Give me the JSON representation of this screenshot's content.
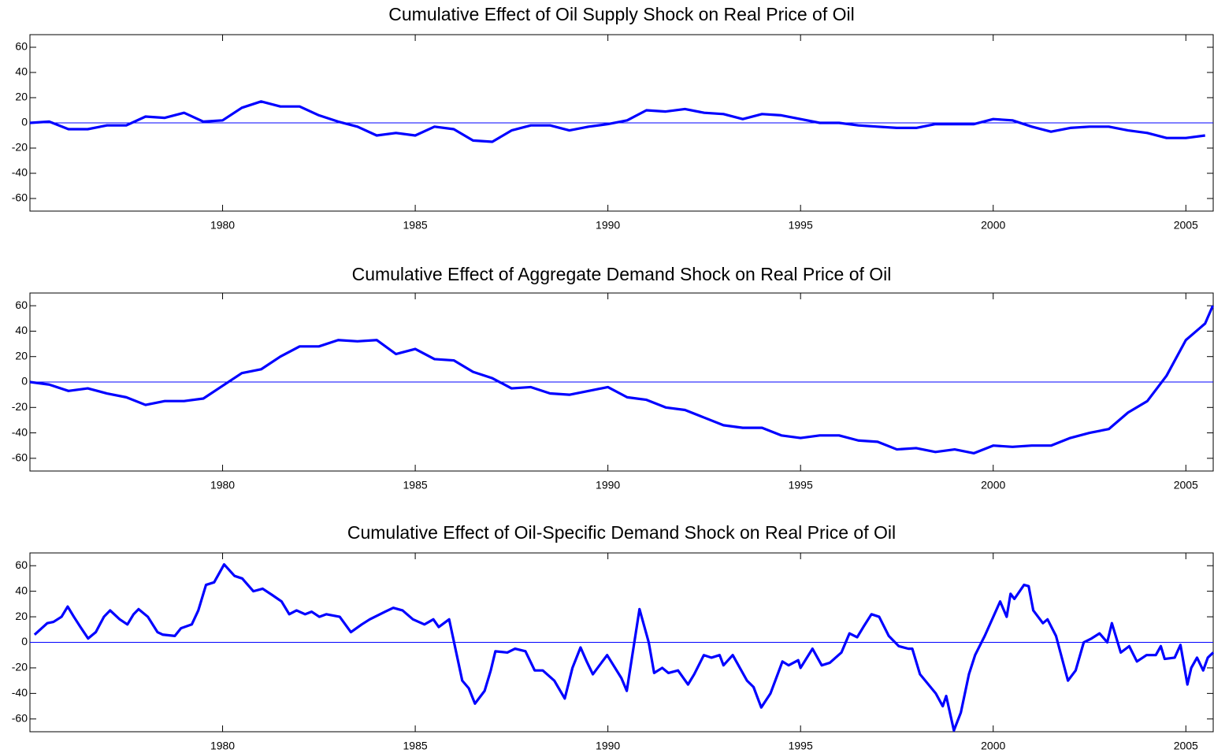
{
  "chart_data": [
    {
      "type": "line",
      "title": "Cumulative Effect of Oil Supply Shock on Real Price of Oil",
      "color": "#0000ff",
      "xlim": [
        1975,
        2005.71
      ],
      "ylim": [
        -70,
        70
      ],
      "xticks": [
        1980,
        1985,
        1990,
        1995,
        2000,
        2005
      ],
      "yticks": [
        -60,
        -40,
        -20,
        0,
        20,
        40,
        60
      ],
      "x": [
        1975,
        1975.5,
        1976,
        1976.5,
        1977,
        1977.5,
        1978,
        1978.5,
        1979,
        1979.5,
        1980,
        1980.5,
        1981,
        1981.5,
        1982,
        1982.5,
        1983,
        1983.5,
        1984,
        1984.5,
        1985,
        1985.5,
        1986,
        1986.5,
        1987,
        1987.5,
        1988,
        1988.5,
        1989,
        1989.5,
        1990,
        1990.5,
        1991,
        1991.5,
        1992,
        1992.5,
        1993,
        1993.5,
        1994,
        1994.5,
        1995,
        1995.5,
        1996,
        1996.5,
        1997,
        1997.5,
        1998,
        1998.5,
        1999,
        1999.5,
        2000,
        2000.5,
        2001,
        2001.5,
        2002,
        2002.5,
        2003,
        2003.5,
        2004,
        2004.5,
        2005,
        2005.5
      ],
      "values": [
        0,
        1,
        -5,
        -5,
        -2,
        -2,
        5,
        4,
        8,
        1,
        2,
        12,
        17,
        13,
        13,
        6,
        1,
        -3,
        -10,
        -8,
        -10,
        -3,
        -5,
        -14,
        -15,
        -6,
        -2,
        -2,
        -6,
        -3,
        -1,
        2,
        10,
        9,
        11,
        8,
        7,
        3,
        7,
        6,
        3,
        0,
        0,
        -2,
        -3,
        -4,
        -4,
        -1,
        -1,
        -1,
        3,
        2,
        -3,
        -7,
        -4,
        -3,
        -3,
        -6,
        -8,
        -12,
        -12,
        -10
      ]
    },
    {
      "type": "line",
      "title": "Cumulative Effect of Aggregate Demand Shock on Real Price of Oil",
      "color": "#0000ff",
      "xlim": [
        1975,
        2005.71
      ],
      "ylim": [
        -70,
        70
      ],
      "xticks": [
        1980,
        1985,
        1990,
        1995,
        2000,
        2005
      ],
      "yticks": [
        -60,
        -40,
        -20,
        0,
        20,
        40,
        60
      ],
      "x": [
        1975,
        1975.5,
        1976,
        1976.5,
        1977,
        1977.5,
        1978,
        1978.5,
        1979,
        1979.5,
        1980,
        1980.5,
        1981,
        1981.5,
        1982,
        1982.5,
        1983,
        1983.5,
        1984,
        1984.5,
        1985,
        1985.5,
        1986,
        1986.5,
        1987,
        1987.5,
        1988,
        1988.5,
        1989,
        1989.5,
        1990,
        1990.5,
        1991,
        1991.5,
        1992,
        1992.5,
        1993,
        1993.5,
        1994,
        1994.5,
        1995,
        1995.5,
        1996,
        1996.5,
        1997,
        1997.5,
        1998,
        1998.5,
        1999,
        1999.5,
        2000,
        2000.5,
        2001,
        2001.5,
        2002,
        2002.5,
        2003,
        2003.5,
        2004,
        2004.5,
        2005,
        2005.5,
        2005.7
      ],
      "values": [
        0,
        -2,
        -7,
        -5,
        -9,
        -12,
        -18,
        -15,
        -15,
        -13,
        -3,
        7,
        10,
        20,
        28,
        28,
        33,
        32,
        33,
        22,
        26,
        18,
        17,
        8,
        3,
        -5,
        -4,
        -9,
        -10,
        -7,
        -4,
        -12,
        -14,
        -20,
        -22,
        -28,
        -34,
        -36,
        -36,
        -42,
        -44,
        -42,
        -42,
        -46,
        -47,
        -53,
        -52,
        -55,
        -53,
        -56,
        -50,
        -51,
        -50,
        -50,
        -44,
        -40,
        -37,
        -24,
        -15,
        5,
        33,
        46,
        60
      ]
    },
    {
      "type": "line",
      "title": "Cumulative Effect of Oil-Specific Demand Shock on Real Price of Oil",
      "color": "#0000ff",
      "xlim": [
        1975,
        2005.71
      ],
      "ylim": [
        -70,
        70
      ],
      "xticks": [
        1980,
        1985,
        1990,
        1995,
        2000,
        2005
      ],
      "yticks": [
        -60,
        -40,
        -20,
        0,
        20,
        40,
        60
      ],
      "x": [
        1975.12,
        1975.45,
        1975.61,
        1975.82,
        1975.98,
        1976.14,
        1976.31,
        1976.51,
        1976.71,
        1976.92,
        1977.08,
        1977.33,
        1977.53,
        1977.69,
        1977.82,
        1978.06,
        1978.31,
        1978.45,
        1978.76,
        1978.92,
        1979.2,
        1979.37,
        1979.57,
        1979.78,
        1980.04,
        1980.31,
        1980.51,
        1980.8,
        1981.04,
        1981.29,
        1981.53,
        1981.73,
        1981.92,
        1982.14,
        1982.31,
        1982.51,
        1982.69,
        1983.04,
        1983.33,
        1983.61,
        1983.82,
        1984.22,
        1984.43,
        1984.67,
        1984.94,
        1985.24,
        1985.47,
        1985.61,
        1985.88,
        1986.22,
        1986.39,
        1986.55,
        1986.8,
        1986.96,
        1987.08,
        1987.39,
        1987.59,
        1987.86,
        1988.1,
        1988.31,
        1988.61,
        1988.88,
        1989.08,
        1989.29,
        1989.45,
        1989.61,
        1989.98,
        1990.35,
        1990.49,
        1990.82,
        1991.06,
        1991.2,
        1991.41,
        1991.57,
        1991.82,
        1992.08,
        1992.24,
        1992.49,
        1992.69,
        1992.9,
        1993.0,
        1993.24,
        1993.61,
        1993.78,
        1993.98,
        1994.22,
        1994.53,
        1994.69,
        1994.94,
        1995.0,
        1995.31,
        1995.55,
        1995.76,
        1996.06,
        1996.27,
        1996.47,
        1996.63,
        1996.84,
        1997.04,
        1997.29,
        1997.55,
        1997.8,
        1997.9,
        1998.1,
        1998.51,
        1998.69,
        1998.78,
        1998.98,
        1999.16,
        1999.37,
        1999.53,
        1999.78,
        2000.18,
        2000.35,
        2000.45,
        2000.55,
        2000.8,
        2000.92,
        2001.04,
        2001.29,
        2001.41,
        2001.63,
        2001.94,
        2002.14,
        2002.35,
        2002.55,
        2002.76,
        2002.96,
        2003.08,
        2003.31,
        2003.53,
        2003.73,
        2003.98,
        2004.22,
        2004.35,
        2004.45,
        2004.71,
        2004.86,
        2005.04,
        2005.14,
        2005.29,
        2005.45,
        2005.57,
        2005.71
      ],
      "values": [
        6,
        15,
        16,
        20,
        28,
        20,
        12,
        3,
        8,
        20,
        25,
        18,
        14,
        22,
        26,
        20,
        8,
        6,
        5,
        11,
        14,
        25,
        45,
        47,
        61,
        52,
        50,
        40,
        42,
        37,
        32,
        22,
        25,
        22,
        24,
        20,
        22,
        20,
        8,
        14,
        18,
        24,
        27,
        25,
        18,
        14,
        18,
        12,
        18,
        -30,
        -36,
        -48,
        -38,
        -22,
        -7,
        -8,
        -5,
        -7,
        -22,
        -22,
        -30,
        -44,
        -20,
        -4,
        -15,
        -25,
        -10,
        -28,
        -38,
        26,
        0,
        -24,
        -20,
        -24,
        -22,
        -33,
        -25,
        -10,
        -12,
        -10,
        -18,
        -10,
        -30,
        -35,
        -51,
        -40,
        -15,
        -18,
        -14,
        -20,
        -5,
        -18,
        -16,
        -8,
        7,
        4,
        12,
        22,
        20,
        5,
        -3,
        -5,
        -5,
        -25,
        -40,
        -50,
        -42,
        -69,
        -55,
        -25,
        -10,
        5,
        32,
        20,
        38,
        34,
        45,
        44,
        25,
        15,
        18,
        5,
        -30,
        -22,
        0,
        3,
        7,
        0,
        15,
        -8,
        -3,
        -15,
        -10,
        -10,
        -3,
        -13,
        -12,
        -2,
        -33,
        -20,
        -12,
        -22,
        -12,
        -8
      ]
    }
  ]
}
